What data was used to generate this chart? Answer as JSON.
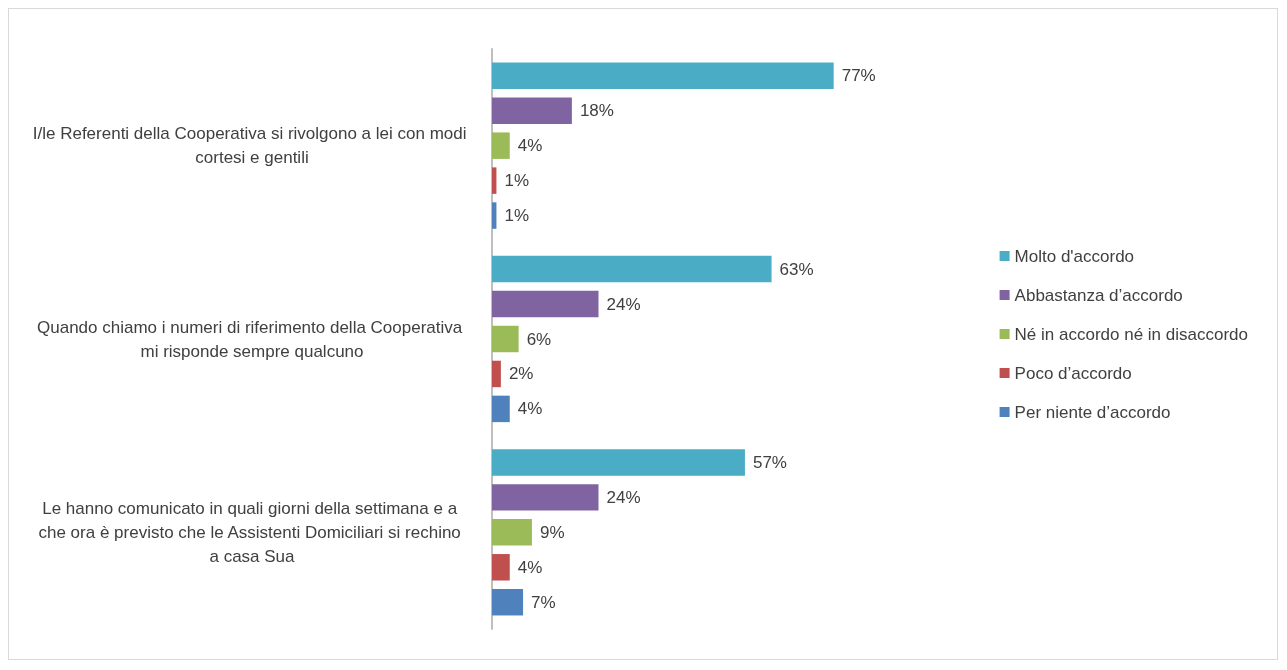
{
  "chart_data": {
    "type": "bar",
    "orientation": "horizontal",
    "categories": [
      "I/le Referenti della Cooperativa si rivolgono a lei con modi cortesi e gentili",
      "Quando chiamo i numeri di riferimento della Cooperativa mi risponde sempre qualcuno",
      "Le hanno comunicato in quali giorni della settimana e a che ora è previsto che le Assistenti Domiciliari si rechino a casa Sua"
    ],
    "series": [
      {
        "name": "Molto d'accordo",
        "color": "#4bacc6",
        "values": [
          77,
          63,
          57
        ],
        "value_labels": [
          "77%",
          "63%",
          "57%"
        ]
      },
      {
        "name": "Abbastanza d’accordo",
        "color": "#8064a2",
        "values": [
          18,
          24,
          24
        ],
        "value_labels": [
          "18%",
          "24%",
          "24%"
        ]
      },
      {
        "name": "Né in accordo né in disaccordo",
        "color": "#9bbb59",
        "values": [
          4,
          6,
          9
        ],
        "value_labels": [
          "4%",
          "6%",
          "9%"
        ]
      },
      {
        "name": "Poco d’accordo",
        "color": "#c0504d",
        "values": [
          1,
          2,
          4
        ],
        "value_labels": [
          "1%",
          "2%",
          "4%"
        ]
      },
      {
        "name": "Per niente d’accordo",
        "color": "#4f81bd",
        "values": [
          1,
          4,
          7
        ],
        "value_labels": [
          "1%",
          "4%",
          "7%"
        ]
      }
    ],
    "legend": "right",
    "grid": false
  }
}
